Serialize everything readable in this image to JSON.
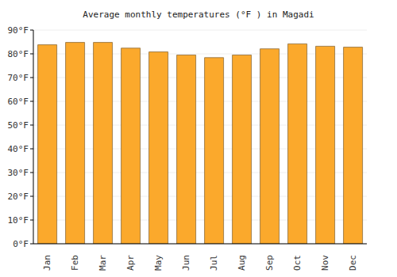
{
  "chart_data": {
    "type": "bar",
    "title": "Average monthly temperatures (°F ) in Magadi",
    "categories": [
      "Jan",
      "Feb",
      "Mar",
      "Apr",
      "May",
      "Jun",
      "Jul",
      "Aug",
      "Sep",
      "Oct",
      "Nov",
      "Dec"
    ],
    "values": [
      83.8,
      84.8,
      84.8,
      82.4,
      80.8,
      79.5,
      78.4,
      79.5,
      82.1,
      84.2,
      83.2,
      82.8
    ],
    "color": "#fba92c",
    "ylim": [
      0,
      90
    ],
    "yticks": [
      {
        "value": 0,
        "label": "0°F"
      },
      {
        "value": 10,
        "label": "10°F"
      },
      {
        "value": 20,
        "label": "20°F"
      },
      {
        "value": 30,
        "label": "30°F"
      },
      {
        "value": 40,
        "label": "40°F"
      },
      {
        "value": 50,
        "label": "50°F"
      },
      {
        "value": 60,
        "label": "60°F"
      },
      {
        "value": 70,
        "label": "70°F"
      },
      {
        "value": 80,
        "label": "80°F"
      },
      {
        "value": 90,
        "label": "90°F"
      }
    ],
    "grid": true
  }
}
